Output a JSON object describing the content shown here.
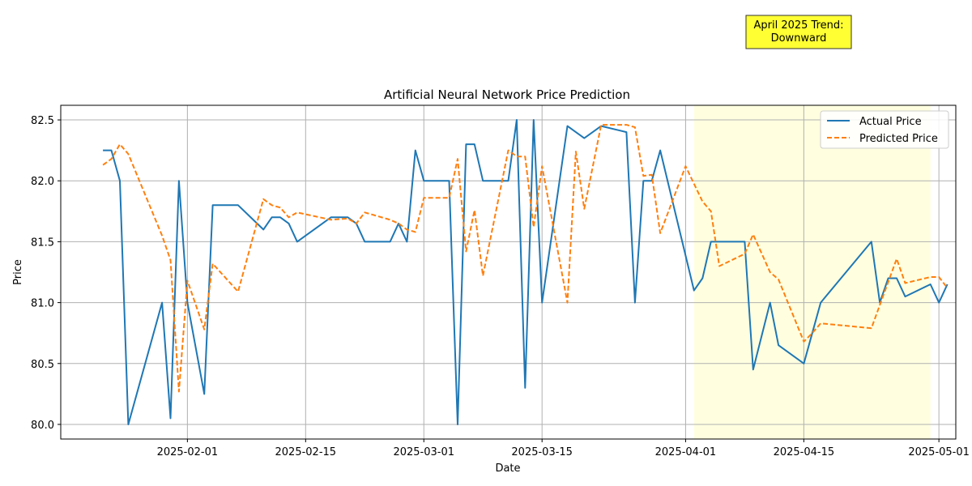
{
  "chart_data": {
    "type": "line",
    "title": "Artificial Neural Network Price Prediction",
    "xlabel": "Date",
    "ylabel": "Price",
    "xlim": [
      "2025-01-17",
      "2025-05-03"
    ],
    "ylim": [
      79.88,
      82.62
    ],
    "x_ticks": [
      "2025-02-01",
      "2025-02-15",
      "2025-03-01",
      "2025-03-15",
      "2025-04-01",
      "2025-04-15",
      "2025-05-01"
    ],
    "y_ticks": [
      80.0,
      80.5,
      81.0,
      81.5,
      82.0,
      82.5
    ],
    "y_tick_labels": [
      "80.0",
      "80.5",
      "81.0",
      "81.5",
      "82.0",
      "82.5"
    ],
    "grid": true,
    "legend_position": "top-right",
    "highlight": {
      "start": "2025-04-02",
      "end": "2025-04-30",
      "color": "#ffffe0"
    },
    "annotation": {
      "text_line1": "April 2025 Trend:",
      "text_line2": "Downward",
      "background": "#ffff33"
    },
    "series": [
      {
        "name": "Actual Price",
        "color": "#1f77b4",
        "style": "solid",
        "points": [
          [
            "2025-01-22",
            82.25
          ],
          [
            "2025-01-23",
            82.25
          ],
          [
            "2025-01-24",
            82.0
          ],
          [
            "2025-01-25",
            80.0
          ],
          [
            "2025-01-29",
            81.0
          ],
          [
            "2025-01-30",
            80.05
          ],
          [
            "2025-01-31",
            82.0
          ],
          [
            "2025-02-01",
            81.0
          ],
          [
            "2025-02-03",
            80.25
          ],
          [
            "2025-02-04",
            81.8
          ],
          [
            "2025-02-07",
            81.8
          ],
          [
            "2025-02-10",
            81.6
          ],
          [
            "2025-02-11",
            81.7
          ],
          [
            "2025-02-12",
            81.7
          ],
          [
            "2025-02-13",
            81.65
          ],
          [
            "2025-02-14",
            81.5
          ],
          [
            "2025-02-18",
            81.7
          ],
          [
            "2025-02-20",
            81.7
          ],
          [
            "2025-02-21",
            81.65
          ],
          [
            "2025-02-22",
            81.5
          ],
          [
            "2025-02-25",
            81.5
          ],
          [
            "2025-02-26",
            81.65
          ],
          [
            "2025-02-27",
            81.5
          ],
          [
            "2025-02-28",
            82.25
          ],
          [
            "2025-03-01",
            82.0
          ],
          [
            "2025-03-04",
            82.0
          ],
          [
            "2025-03-05",
            80.0
          ],
          [
            "2025-03-06",
            82.3
          ],
          [
            "2025-03-07",
            82.3
          ],
          [
            "2025-03-08",
            82.0
          ],
          [
            "2025-03-11",
            82.0
          ],
          [
            "2025-03-12",
            82.5
          ],
          [
            "2025-03-13",
            80.3
          ],
          [
            "2025-03-14",
            82.5
          ],
          [
            "2025-03-15",
            81.0
          ],
          [
            "2025-03-18",
            82.45
          ],
          [
            "2025-03-20",
            82.35
          ],
          [
            "2025-03-22",
            82.45
          ],
          [
            "2025-03-25",
            82.4
          ],
          [
            "2025-03-26",
            81.0
          ],
          [
            "2025-03-27",
            82.0
          ],
          [
            "2025-03-28",
            82.0
          ],
          [
            "2025-03-29",
            82.25
          ],
          [
            "2025-04-02",
            81.1
          ],
          [
            "2025-04-03",
            81.2
          ],
          [
            "2025-04-04",
            81.5
          ],
          [
            "2025-04-08",
            81.5
          ],
          [
            "2025-04-09",
            80.45
          ],
          [
            "2025-04-11",
            81.0
          ],
          [
            "2025-04-12",
            80.65
          ],
          [
            "2025-04-15",
            80.5
          ],
          [
            "2025-04-16",
            80.75
          ],
          [
            "2025-04-17",
            81.0
          ],
          [
            "2025-04-23",
            81.5
          ],
          [
            "2025-04-24",
            81.0
          ],
          [
            "2025-04-25",
            81.2
          ],
          [
            "2025-04-26",
            81.2
          ],
          [
            "2025-04-27",
            81.05
          ],
          [
            "2025-04-30",
            81.15
          ],
          [
            "2025-05-01",
            81.0
          ],
          [
            "2025-05-02",
            81.15
          ]
        ]
      },
      {
        "name": "Predicted Price",
        "color": "#ff7f0e",
        "style": "dashed",
        "points": [
          [
            "2025-01-22",
            82.13
          ],
          [
            "2025-01-23",
            82.18
          ],
          [
            "2025-01-24",
            82.3
          ],
          [
            "2025-01-25",
            82.22
          ],
          [
            "2025-01-29",
            81.55
          ],
          [
            "2025-01-30",
            81.35
          ],
          [
            "2025-01-31",
            80.27
          ],
          [
            "2025-02-01",
            81.18
          ],
          [
            "2025-02-03",
            80.78
          ],
          [
            "2025-02-04",
            81.32
          ],
          [
            "2025-02-07",
            81.09
          ],
          [
            "2025-02-10",
            81.85
          ],
          [
            "2025-02-11",
            81.8
          ],
          [
            "2025-02-12",
            81.78
          ],
          [
            "2025-02-13",
            81.7
          ],
          [
            "2025-02-14",
            81.74
          ],
          [
            "2025-02-18",
            81.68
          ],
          [
            "2025-02-20",
            81.69
          ],
          [
            "2025-02-21",
            81.65
          ],
          [
            "2025-02-22",
            81.74
          ],
          [
            "2025-02-25",
            81.68
          ],
          [
            "2025-02-26",
            81.65
          ],
          [
            "2025-02-27",
            81.6
          ],
          [
            "2025-02-28",
            81.58
          ],
          [
            "2025-03-01",
            81.86
          ],
          [
            "2025-03-04",
            81.86
          ],
          [
            "2025-03-05",
            82.18
          ],
          [
            "2025-03-06",
            81.42
          ],
          [
            "2025-03-07",
            81.76
          ],
          [
            "2025-03-08",
            81.22
          ],
          [
            "2025-03-11",
            82.25
          ],
          [
            "2025-03-12",
            82.2
          ],
          [
            "2025-03-13",
            82.2
          ],
          [
            "2025-03-14",
            81.62
          ],
          [
            "2025-03-15",
            82.12
          ],
          [
            "2025-03-18",
            81.0
          ],
          [
            "2025-03-19",
            82.24
          ],
          [
            "2025-03-20",
            81.77
          ],
          [
            "2025-03-22",
            82.46
          ],
          [
            "2025-03-25",
            82.46
          ],
          [
            "2025-03-26",
            82.44
          ],
          [
            "2025-03-27",
            82.04
          ],
          [
            "2025-03-28",
            82.05
          ],
          [
            "2025-03-29",
            81.57
          ],
          [
            "2025-04-01",
            82.12
          ],
          [
            "2025-04-03",
            81.83
          ],
          [
            "2025-04-04",
            81.75
          ],
          [
            "2025-04-05",
            81.3
          ],
          [
            "2025-04-08",
            81.4
          ],
          [
            "2025-04-09",
            81.56
          ],
          [
            "2025-04-11",
            81.25
          ],
          [
            "2025-04-12",
            81.19
          ],
          [
            "2025-04-15",
            80.68
          ],
          [
            "2025-04-16",
            80.75
          ],
          [
            "2025-04-17",
            80.83
          ],
          [
            "2025-04-23",
            80.79
          ],
          [
            "2025-04-24",
            80.98
          ],
          [
            "2025-04-26",
            81.36
          ],
          [
            "2025-04-27",
            81.16
          ],
          [
            "2025-04-30",
            81.21
          ],
          [
            "2025-05-01",
            81.21
          ],
          [
            "2025-05-02",
            81.12
          ]
        ]
      }
    ]
  }
}
